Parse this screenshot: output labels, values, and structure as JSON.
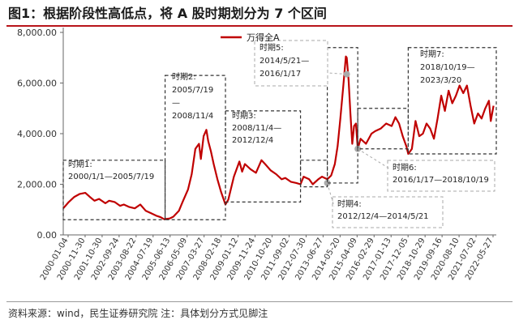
{
  "title": "图1：根据阶段性高低点，将 A 股时期划分为 7 个区间",
  "source": "资料来源：wind，民生证券研究院 注：具体划分方式见脚注",
  "chart_data": {
    "type": "line",
    "title": "图1：根据阶段性高低点，将 A 股时期划分为 7 个区间",
    "xlabel": "",
    "ylabel": "",
    "ylim": [
      0,
      8000
    ],
    "yticks": [
      "0.00",
      "2,000.00",
      "4,000.00",
      "6,000.00",
      "8,000.00"
    ],
    "ytick_values": [
      0,
      2000,
      4000,
      6000,
      8000
    ],
    "x_range": [
      2000.0,
      2023.6
    ],
    "xtick_labels": [
      "2000-01-04",
      "2000-11-30",
      "2001-10-30",
      "2002-09-24",
      "2003-08-22",
      "2004-07-19",
      "2005-06-13",
      "2006-05-09",
      "2007-03-27",
      "2008-02-18",
      "2009-01-12",
      "2009-11-24",
      "2010-10-20",
      "2011-09-02",
      "2012-07-30",
      "2013-06-27",
      "2014-05-20",
      "2015-04-09",
      "2016-02-29",
      "2017-01-13",
      "2017-12-05",
      "2018-10-29",
      "2019-09-16",
      "2020-08-10",
      "2021-07-02",
      "2022-05-27"
    ],
    "legend": {
      "label": "万得全A",
      "position": "top-center"
    },
    "series": [
      {
        "name": "万得全A",
        "color": "#c00000",
        "x": [
          2000.0,
          2000.3,
          2000.6,
          2000.9,
          2001.2,
          2001.45,
          2001.7,
          2001.95,
          2002.3,
          2002.5,
          2002.8,
          2003.1,
          2003.3,
          2003.6,
          2003.9,
          2004.2,
          2004.5,
          2004.8,
          2005.1,
          2005.3,
          2005.5,
          2005.8,
          2006.0,
          2006.3,
          2006.5,
          2006.8,
          2007.0,
          2007.2,
          2007.4,
          2007.5,
          2007.65,
          2007.8,
          2007.9,
          2008.05,
          2008.2,
          2008.4,
          2008.6,
          2008.84,
          2009.0,
          2009.3,
          2009.6,
          2009.75,
          2009.9,
          2010.2,
          2010.5,
          2010.8,
          2011.0,
          2011.3,
          2011.6,
          2011.9,
          2012.1,
          2012.4,
          2012.7,
          2012.93,
          2013.1,
          2013.4,
          2013.6,
          2013.9,
          2014.1,
          2014.39,
          2014.6,
          2014.8,
          2014.95,
          2015.1,
          2015.25,
          2015.4,
          2015.45,
          2015.55,
          2015.65,
          2015.75,
          2015.85,
          2015.95,
          2016.05,
          2016.2,
          2016.5,
          2016.8,
          2017.0,
          2017.3,
          2017.6,
          2017.9,
          2018.1,
          2018.3,
          2018.5,
          2018.7,
          2018.8,
          2019.0,
          2019.2,
          2019.4,
          2019.6,
          2019.8,
          2020.0,
          2020.2,
          2020.4,
          2020.6,
          2020.8,
          2021.0,
          2021.2,
          2021.4,
          2021.6,
          2021.8,
          2022.0,
          2022.2,
          2022.4,
          2022.6,
          2022.8,
          2023.0,
          2023.2,
          2023.3,
          2023.45
        ],
        "values": [
          1050,
          1300,
          1500,
          1620,
          1660,
          1500,
          1350,
          1420,
          1250,
          1350,
          1300,
          1150,
          1200,
          1100,
          1050,
          1200,
          950,
          850,
          750,
          700,
          620,
          650,
          720,
          950,
          1300,
          1800,
          2400,
          3400,
          3600,
          3000,
          3900,
          4150,
          3700,
          3300,
          2800,
          2200,
          1700,
          1200,
          1400,
          2300,
          2900,
          2500,
          2800,
          2600,
          2450,
          2950,
          2800,
          2550,
          2400,
          2200,
          2250,
          2100,
          2050,
          2000,
          2300,
          2200,
          2000,
          2200,
          2300,
          2200,
          2350,
          2800,
          3500,
          4600,
          5800,
          7050,
          7000,
          6100,
          4800,
          3600,
          4300,
          4400,
          3400,
          3800,
          3600,
          4000,
          4100,
          4200,
          4400,
          4300,
          4650,
          4400,
          3900,
          3500,
          3200,
          3400,
          4500,
          3900,
          4000,
          4400,
          4200,
          3800,
          4600,
          5500,
          4900,
          5700,
          5200,
          5500,
          5900,
          5600,
          5900,
          5100,
          4400,
          4800,
          4600,
          5000,
          5300,
          4500,
          5100
        ],
        "annotation_points": [
          {
            "x": 2015.45,
            "y": 6350,
            "color": "#aaaaaa"
          },
          {
            "x": 2016.05,
            "y": 3400,
            "color": "#aaaaaa"
          },
          {
            "x": 2014.39,
            "y": 2050,
            "color": "#aaaaaa"
          }
        ]
      }
    ],
    "periods": [
      {
        "label": "时期1：2000/1/1—2005/7/19",
        "x0": 2000.0,
        "x1": 2005.55,
        "y0": 600,
        "y1": 2950
      },
      {
        "label": "时期2：2005/7/19—2008/11/4",
        "x0": 2005.55,
        "x1": 2008.84,
        "y0": 600,
        "y1": 6300
      },
      {
        "label": "时期3：2008/11/4—2012/12/4",
        "x0": 2008.84,
        "x1": 2012.93,
        "y0": 1300,
        "y1": 4900
      },
      {
        "label": "时期4：2012/12/4—2014/5/21",
        "x0": 2012.93,
        "x1": 2014.39,
        "y0": 1900,
        "y1": 2950
      },
      {
        "label": "时期5：2014/5/21—2016/1/17",
        "x0": 2014.39,
        "x1": 2016.05,
        "y0": 2050,
        "y1": 7400
      },
      {
        "label": "时期6：2016/1/17—2018/10/19",
        "x0": 2016.05,
        "x1": 2018.8,
        "y0": 3400,
        "y1": 5000
      },
      {
        "label": "时期7：2018/10/19—2023/3/20",
        "x0": 2018.8,
        "x1": 2023.6,
        "y0": 3200,
        "y1": 7400
      }
    ],
    "annotation_labels": [
      {
        "lines": [
          "时期1:",
          "2000/1/1—2005/7/19"
        ]
      },
      {
        "lines": [
          "时期2:",
          "2005/7/19",
          "—",
          "2008/11/4"
        ]
      },
      {
        "lines": [
          "时期3:",
          "2008/11/4—",
          "2012/12/4"
        ]
      },
      {
        "lines": [
          "时期4:",
          "2012/12/4—2014/5/21"
        ]
      },
      {
        "lines": [
          "时期5:",
          "2014/5/21—",
          "2016/1/17"
        ]
      },
      {
        "lines": [
          "时期6:",
          "2016/1/17—2018/10/19"
        ]
      },
      {
        "lines": [
          "时期7:",
          "2018/10/19—",
          "2023/3/20"
        ]
      }
    ]
  }
}
